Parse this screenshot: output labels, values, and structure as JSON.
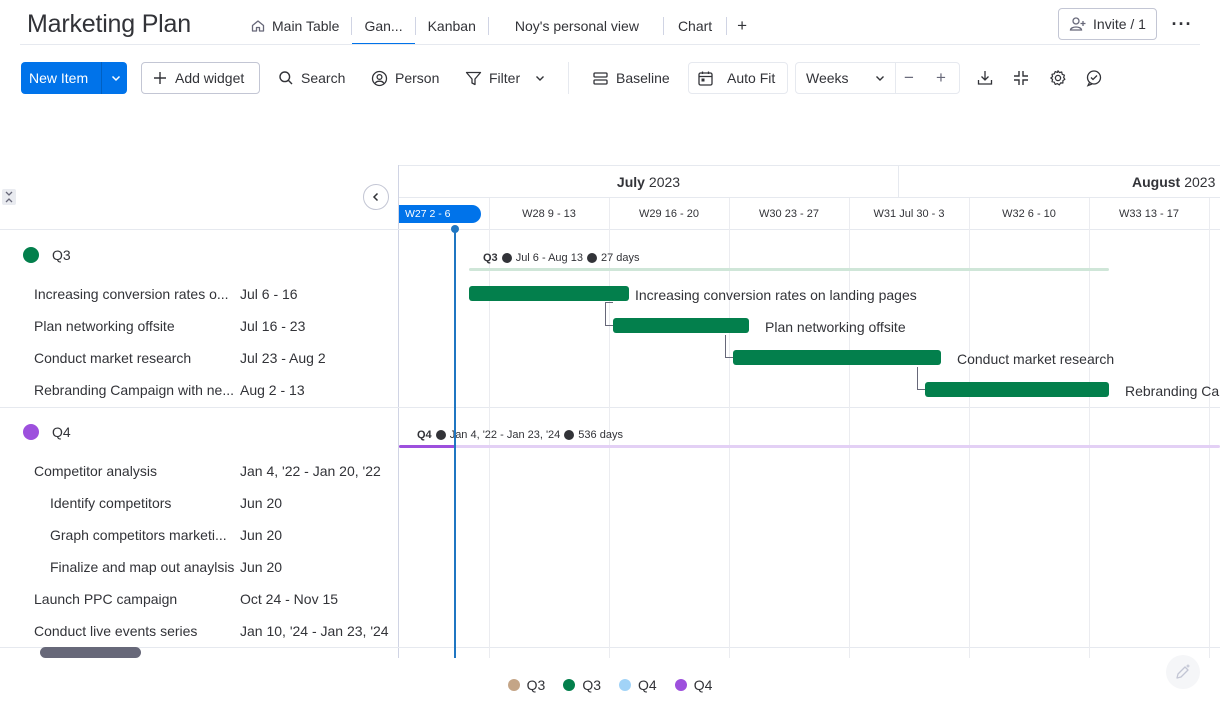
{
  "app": {
    "title": "Marketing Plan"
  },
  "tabs": [
    {
      "label": "Main Table",
      "icon": "home-icon"
    },
    {
      "label": "Gan...",
      "active": true
    },
    {
      "label": "Kanban"
    },
    {
      "label": "Noy's personal view"
    },
    {
      "label": "Chart"
    }
  ],
  "tab_add": "+",
  "invite": {
    "label": "Invite / 1",
    "icon": "add-person-icon"
  },
  "more": "···",
  "toolbar": {
    "new_item": "New Item",
    "add_widget": "Add widget",
    "search": "Search",
    "person": "Person",
    "filter": "Filter",
    "baseline": "Baseline",
    "auto_fit": "Auto Fit",
    "zoom_value": "Weeks",
    "zoom_out": "−",
    "zoom_in": "+"
  },
  "timeline": {
    "months": [
      {
        "name": "July",
        "year": "2023"
      },
      {
        "name": "August",
        "year": "2023"
      }
    ],
    "weeks": [
      "W27 2 - 6",
      "W28 9 - 13",
      "W29 16 - 20",
      "W30 23 - 27",
      "W31 Jul 30 - 3",
      "W32 6 - 10",
      "W33 13 - 17"
    ]
  },
  "groups": [
    {
      "name": "Q3",
      "color": "#037f4c",
      "summary": {
        "range": "Jul 6 - Aug 13",
        "duration": "27 days"
      },
      "items": [
        {
          "name": "Increasing conversion rates o...",
          "bar_label": "Increasing conversion rates on landing pages",
          "dates": "Jul 6 - 16"
        },
        {
          "name": "Plan networking offsite",
          "bar_label": "Plan networking offsite",
          "dates": "Jul 16 - 23"
        },
        {
          "name": "Conduct market research",
          "bar_label": "Conduct market research",
          "dates": "Jul 23 - Aug 2"
        },
        {
          "name": "Rebranding Campaign with ne...",
          "bar_label": "Rebranding Ca",
          "dates": "Aug 2 - 13"
        }
      ]
    },
    {
      "name": "Q4",
      "color": "#9d50dd",
      "summary": {
        "range": "Jan 4, '22 - Jan 23, '24",
        "duration": "536 days"
      },
      "items": [
        {
          "name": "Competitor analysis",
          "dates": "Jan 4, '22 - Jan 20, '22"
        },
        {
          "name": "Identify competitors",
          "dates": "Jun 20",
          "sub": true
        },
        {
          "name": "Graph competitors marketi...",
          "dates": "Jun 20",
          "sub": true
        },
        {
          "name": "Finalize and map out anaylsis",
          "dates": "Jun 20",
          "sub": true
        },
        {
          "name": "Launch PPC campaign",
          "dates": "Oct 24 - Nov 15"
        },
        {
          "name": "Conduct live events series",
          "dates": "Jan 10, '24 - Jan 23, '24"
        }
      ]
    }
  ],
  "legend": [
    {
      "label": "Q3",
      "color": "#c4a587"
    },
    {
      "label": "Q3",
      "color": "#037f4c"
    },
    {
      "label": "Q4",
      "color": "#a1d3f7"
    },
    {
      "label": "Q4",
      "color": "#9d50dd"
    }
  ]
}
